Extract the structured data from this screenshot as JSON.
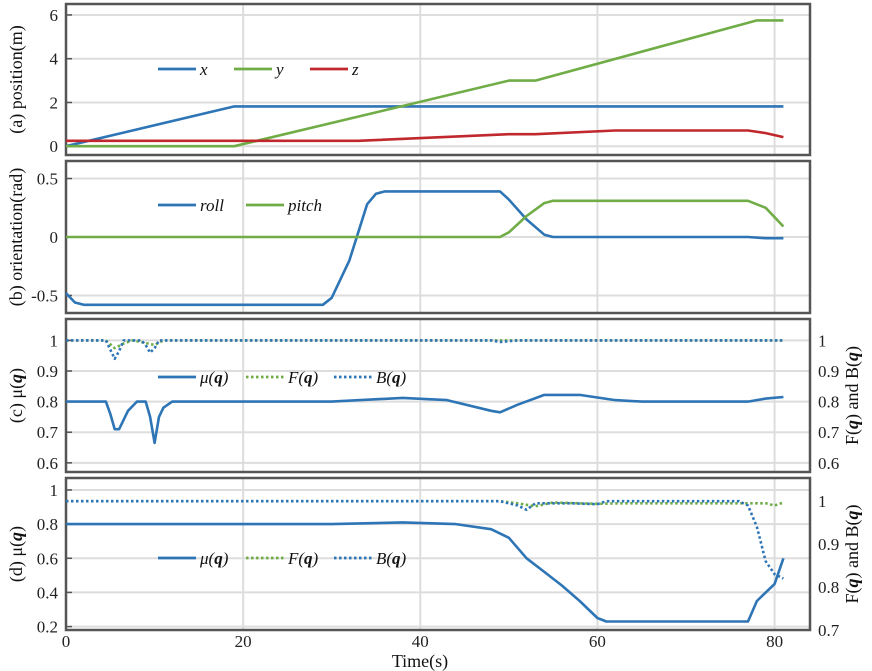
{
  "x_axis": {
    "label": "Time(s)",
    "ticks": [
      0,
      20,
      40,
      60,
      80
    ],
    "range": [
      0,
      84
    ]
  },
  "colors": {
    "blue": "#2e75b6",
    "green": "#70ad47",
    "red": "#c0282d",
    "grid": "#dddddd",
    "frame": "#555555"
  },
  "chart_data": [
    {
      "type": "line",
      "panel": "a",
      "ylabel": "(a) position(m)",
      "ylim": [
        -0.4,
        6.5
      ],
      "yticks": [
        0,
        2,
        4,
        6
      ],
      "ytick_labels": [
        "0",
        "2",
        "4",
        "6"
      ],
      "grid": true,
      "legend": {
        "placement": "upper-left",
        "entries": [
          "x",
          "y",
          "z"
        ]
      },
      "series": [
        {
          "name": "x",
          "color": "#2e75b6",
          "style": "solid",
          "points": [
            [
              0,
              0.0
            ],
            [
              19,
              1.82
            ],
            [
              81,
              1.82
            ]
          ]
        },
        {
          "name": "y",
          "color": "#70ad47",
          "style": "solid",
          "points": [
            [
              0,
              0.0
            ],
            [
              19,
              0.0
            ],
            [
              50,
              3.0
            ],
            [
              53,
              3.0
            ],
            [
              78,
              5.75
            ],
            [
              81,
              5.75
            ]
          ]
        },
        {
          "name": "z",
          "color": "#c0282d",
          "style": "solid",
          "points": [
            [
              0,
              0.25
            ],
            [
              33,
              0.25
            ],
            [
              50,
              0.55
            ],
            [
              53,
              0.55
            ],
            [
              62,
              0.72
            ],
            [
              77,
              0.72
            ],
            [
              79,
              0.6
            ],
            [
              81,
              0.42
            ]
          ]
        }
      ]
    },
    {
      "type": "line",
      "panel": "b",
      "ylabel": "(b) orientation(rad)",
      "ylim": [
        -0.65,
        0.65
      ],
      "yticks": [
        -0.5,
        0,
        0.5
      ],
      "ytick_labels": [
        "-0.5",
        "0",
        "0.5"
      ],
      "grid": true,
      "legend": {
        "placement": "upper-left",
        "entries": [
          "roll",
          "pitch"
        ]
      },
      "series": [
        {
          "name": "roll",
          "color": "#2e75b6",
          "style": "solid",
          "points": [
            [
              0,
              -0.48
            ],
            [
              1,
              -0.56
            ],
            [
              2,
              -0.58
            ],
            [
              29,
              -0.58
            ],
            [
              30,
              -0.52
            ],
            [
              32,
              -0.2
            ],
            [
              34,
              0.28
            ],
            [
              35,
              0.37
            ],
            [
              36,
              0.39
            ],
            [
              49,
              0.39
            ],
            [
              50,
              0.32
            ],
            [
              52,
              0.15
            ],
            [
              54,
              0.02
            ],
            [
              55,
              0.0
            ],
            [
              77,
              0.0
            ],
            [
              79,
              -0.01
            ],
            [
              81,
              -0.01
            ]
          ]
        },
        {
          "name": "pitch",
          "color": "#70ad47",
          "style": "solid",
          "points": [
            [
              0,
              0.0
            ],
            [
              49,
              0.0
            ],
            [
              50,
              0.04
            ],
            [
              52,
              0.18
            ],
            [
              54,
              0.29
            ],
            [
              55,
              0.31
            ],
            [
              77,
              0.31
            ],
            [
              79,
              0.25
            ],
            [
              81,
              0.09
            ]
          ]
        }
      ]
    },
    {
      "type": "line",
      "panel": "c",
      "ylabel": "(c) μ(q)",
      "ylabel_right": "F(q) and B(q)",
      "ylim": [
        0.57,
        1.07
      ],
      "yticks": [
        0.6,
        0.7,
        0.8,
        0.9,
        1.0
      ],
      "ytick_labels": [
        "0.6",
        "0.7",
        "0.8",
        "0.9",
        "1"
      ],
      "yticks_right_labels": [
        "0.6",
        "0.7",
        "0.8",
        "0.9",
        "1"
      ],
      "grid": true,
      "legend": {
        "placement": "center-left",
        "entries": [
          "μ(q)",
          "F(q)",
          "B(q)"
        ]
      },
      "series": [
        {
          "name": "μ(q)",
          "color": "#2e75b6",
          "style": "solid",
          "points": [
            [
              0,
              0.8
            ],
            [
              4.5,
              0.8
            ],
            [
              5,
              0.76
            ],
            [
              5.5,
              0.71
            ],
            [
              6,
              0.71
            ],
            [
              7,
              0.77
            ],
            [
              8,
              0.8
            ],
            [
              9,
              0.8
            ],
            [
              9.5,
              0.75
            ],
            [
              10,
              0.665
            ],
            [
              10.5,
              0.75
            ],
            [
              11,
              0.78
            ],
            [
              12,
              0.8
            ],
            [
              30,
              0.8
            ],
            [
              38,
              0.812
            ],
            [
              43,
              0.805
            ],
            [
              48,
              0.77
            ],
            [
              49,
              0.765
            ],
            [
              51,
              0.79
            ],
            [
              54,
              0.822
            ],
            [
              58,
              0.822
            ],
            [
              62,
              0.805
            ],
            [
              65,
              0.8
            ],
            [
              77,
              0.8
            ],
            [
              79,
              0.81
            ],
            [
              81,
              0.815
            ]
          ]
        },
        {
          "name": "F(q)",
          "color": "#70ad47",
          "style": "dotted",
          "points": [
            [
              0,
              1.0
            ],
            [
              4.5,
              1.0
            ],
            [
              5.5,
              0.975
            ],
            [
              6.5,
              0.99
            ],
            [
              7.5,
              1.0
            ],
            [
              8.5,
              0.995
            ],
            [
              10,
              0.985
            ],
            [
              11,
              1.0
            ],
            [
              81,
              1.0
            ]
          ]
        },
        {
          "name": "B(q)",
          "color": "#2e75b6",
          "style": "dotted",
          "points": [
            [
              0,
              1.0
            ],
            [
              4.5,
              1.0
            ],
            [
              5,
              0.97
            ],
            [
              5.5,
              0.94
            ],
            [
              6,
              0.965
            ],
            [
              6.5,
              1.0
            ],
            [
              8.5,
              1.0
            ],
            [
              9,
              0.985
            ],
            [
              9.5,
              0.96
            ],
            [
              10,
              0.975
            ],
            [
              10.5,
              1.0
            ],
            [
              48,
              1.0
            ],
            [
              49,
              0.995
            ],
            [
              51,
              1.0
            ],
            [
              81,
              1.0
            ]
          ]
        }
      ]
    },
    {
      "type": "line",
      "panel": "d",
      "ylabel": "(d) μ(q)",
      "ylabel_right": "F(q) and B(q)",
      "ylim": [
        0.18,
        1.07
      ],
      "yticks": [
        0.2,
        0.4,
        0.6,
        0.8,
        1.0
      ],
      "ytick_labels": [
        "0.2",
        "0.4",
        "0.6",
        "0.8",
        "1"
      ],
      "right_axis": {
        "ylim": [
          0.7,
          1.054
        ],
        "yticks": [
          0.7,
          0.8,
          0.9,
          1.0
        ],
        "ytick_labels": [
          "0.7",
          "0.8",
          "0.9",
          "1"
        ]
      },
      "grid": true,
      "legend": {
        "placement": "center-left",
        "entries": [
          "μ(q)",
          "F(q)",
          "B(q)"
        ]
      },
      "series": [
        {
          "name": "μ(q)",
          "color": "#2e75b6",
          "style": "solid",
          "axis": "left",
          "points": [
            [
              0,
              0.8
            ],
            [
              30,
              0.8
            ],
            [
              38,
              0.81
            ],
            [
              44,
              0.8
            ],
            [
              48,
              0.77
            ],
            [
              50,
              0.72
            ],
            [
              52,
              0.6
            ],
            [
              54,
              0.52
            ],
            [
              56,
              0.44
            ],
            [
              58,
              0.35
            ],
            [
              60,
              0.25
            ],
            [
              61,
              0.23
            ],
            [
              77,
              0.23
            ],
            [
              78,
              0.35
            ],
            [
              80,
              0.45
            ],
            [
              81,
              0.6
            ]
          ]
        },
        {
          "name": "F(q)",
          "color": "#70ad47",
          "style": "dotted",
          "axis": "right",
          "points": [
            [
              0,
              1.0
            ],
            [
              49,
              1.0
            ],
            [
              51,
              0.995
            ],
            [
              53,
              0.988
            ],
            [
              55,
              0.997
            ],
            [
              60,
              0.994
            ],
            [
              63,
              0.995
            ],
            [
              79,
              0.995
            ],
            [
              80,
              0.99
            ],
            [
              81,
              0.997
            ]
          ]
        },
        {
          "name": "B(q)",
          "color": "#2e75b6",
          "style": "dotted",
          "axis": "right",
          "points": [
            [
              0,
              1.0
            ],
            [
              49,
              1.0
            ],
            [
              51,
              0.99
            ],
            [
              52,
              0.98
            ],
            [
              53,
              0.995
            ],
            [
              57,
              0.995
            ],
            [
              60,
              0.993
            ],
            [
              61,
              1.0
            ],
            [
              76,
              1.0
            ],
            [
              77,
              0.99
            ],
            [
              78,
              0.94
            ],
            [
              79,
              0.86
            ],
            [
              80,
              0.83
            ],
            [
              81,
              0.82
            ]
          ]
        }
      ]
    }
  ]
}
